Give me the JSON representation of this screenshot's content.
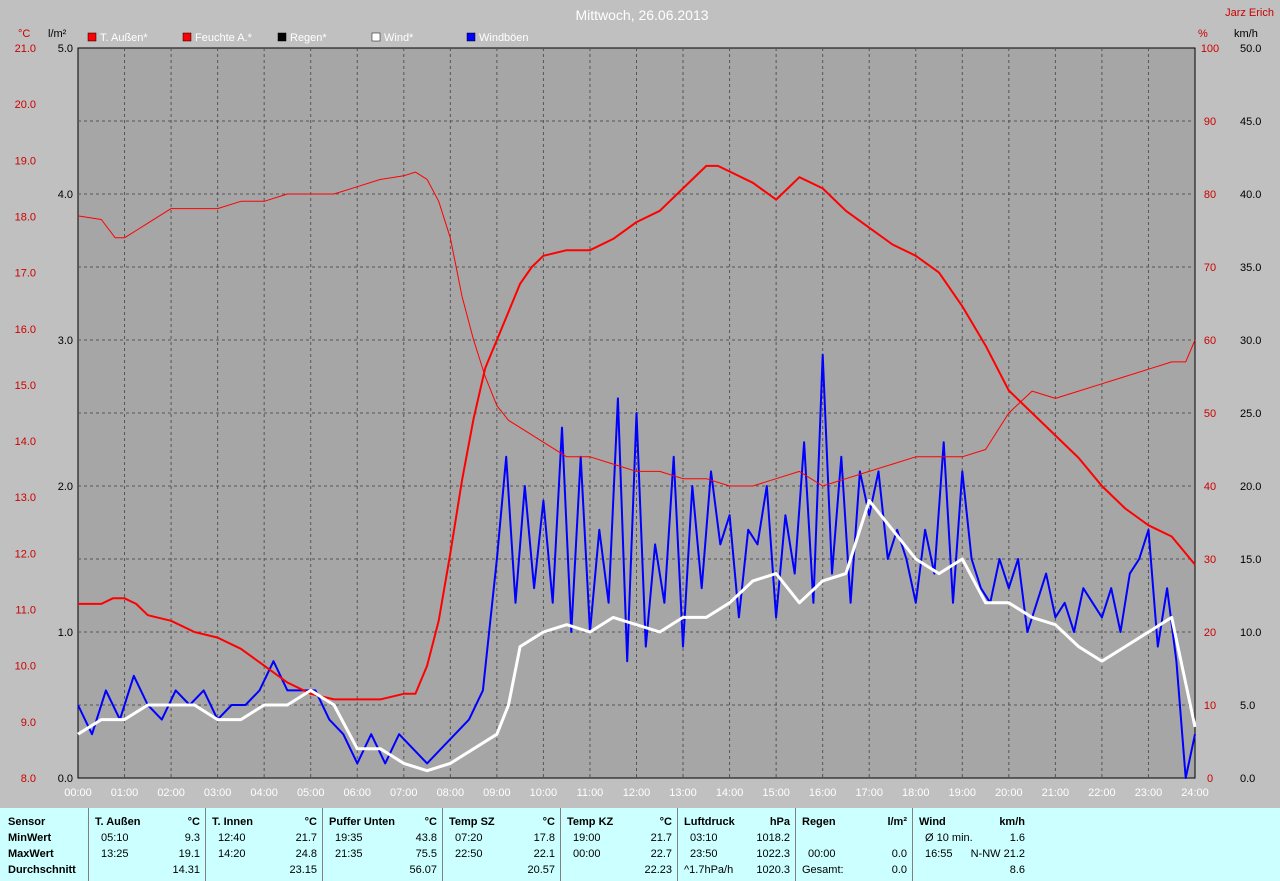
{
  "title": "Mittwoch, 26.06.2013",
  "author": "Jarz Erich",
  "units": {
    "temp": "°C",
    "rain": "l/m²",
    "hum": "%",
    "wind": "km/h"
  },
  "legend": [
    {
      "label": "T. Außen*",
      "color": "#ff0000"
    },
    {
      "label": "Feuchte A.*",
      "color": "#ff0000"
    },
    {
      "label": "Regen*",
      "color": "#000000"
    },
    {
      "label": "Wind*",
      "color": "#ffffff"
    },
    {
      "label": "Windböen",
      "color": "#0000ff"
    }
  ],
  "axes": {
    "temp_ticks": [
      "21.0",
      "20.0",
      "19.0",
      "18.0",
      "17.0",
      "16.0",
      "15.0",
      "14.0",
      "13.0",
      "12.0",
      "11.0",
      "10.0",
      "9.0",
      "8.0"
    ],
    "rain_ticks": [
      "5.0",
      "4.0",
      "3.0",
      "2.0",
      "1.0",
      "0.0"
    ],
    "hum_ticks": [
      "100",
      "90",
      "80",
      "70",
      "60",
      "50",
      "40",
      "30",
      "20",
      "10",
      "0"
    ],
    "wind_ticks": [
      "50.0",
      "45.0",
      "40.0",
      "35.0",
      "30.0",
      "25.0",
      "20.0",
      "15.0",
      "10.0",
      "5.0",
      "0.0"
    ],
    "time_ticks": [
      "00:00",
      "01:00",
      "02:00",
      "03:00",
      "04:00",
      "05:00",
      "06:00",
      "07:00",
      "08:00",
      "09:00",
      "10:00",
      "11:00",
      "12:00",
      "13:00",
      "14:00",
      "15:00",
      "16:00",
      "17:00",
      "18:00",
      "19:00",
      "20:00",
      "21:00",
      "22:00",
      "23:00",
      "24:00"
    ]
  },
  "chart_data": {
    "type": "line",
    "title": "Mittwoch, 26.06.2013",
    "x_unit": "hour",
    "xlim": [
      0,
      24
    ],
    "temp_ylim": [
      8,
      21
    ],
    "rain_ylim": [
      0,
      5
    ],
    "hum_ylim": [
      0,
      100
    ],
    "wind_ylim": [
      0,
      50
    ],
    "grid": true,
    "series": [
      {
        "name": "T. Außen*",
        "axis": "temp",
        "color": "#ff0000",
        "x": [
          0,
          0.5,
          0.75,
          1,
          1.25,
          1.5,
          2,
          2.5,
          3,
          3.5,
          4,
          4.5,
          5,
          5.5,
          6,
          6.5,
          7,
          7.25,
          7.5,
          7.75,
          8,
          8.25,
          8.5,
          8.75,
          9,
          9.25,
          9.5,
          9.75,
          10,
          10.5,
          11,
          11.5,
          12,
          12.5,
          13,
          13.5,
          13.75,
          14,
          14.5,
          15,
          15.25,
          15.5,
          16,
          16.25,
          16.5,
          17,
          17.5,
          18,
          18.5,
          19,
          19.5,
          20,
          20.5,
          21,
          21.5,
          22,
          22.5,
          23,
          23.5,
          24
        ],
        "values": [
          11.1,
          11.1,
          11.2,
          11.2,
          11.1,
          10.9,
          10.8,
          10.6,
          10.5,
          10.3,
          10.0,
          9.7,
          9.5,
          9.4,
          9.4,
          9.4,
          9.5,
          9.5,
          10.0,
          10.8,
          12.0,
          13.3,
          14.4,
          15.3,
          15.8,
          16.3,
          16.8,
          17.1,
          17.3,
          17.4,
          17.4,
          17.6,
          17.9,
          18.1,
          18.5,
          18.9,
          18.9,
          18.8,
          18.6,
          18.3,
          18.5,
          18.7,
          18.5,
          18.3,
          18.1,
          17.8,
          17.5,
          17.3,
          17.0,
          16.4,
          15.7,
          14.9,
          14.5,
          14.1,
          13.7,
          13.2,
          12.8,
          12.5,
          12.3,
          11.8
        ]
      },
      {
        "name": "Feuchte A.*",
        "axis": "hum",
        "color": "#ff0000",
        "x": [
          0,
          0.5,
          0.8,
          1,
          1.25,
          1.5,
          2,
          2.5,
          3,
          3.5,
          4,
          4.5,
          5,
          5.5,
          6,
          6.5,
          7,
          7.25,
          7.5,
          7.75,
          8,
          8.25,
          8.5,
          8.75,
          9,
          9.25,
          9.5,
          10,
          10.5,
          11,
          11.5,
          12,
          12.5,
          13,
          13.5,
          14,
          14.5,
          15,
          15.5,
          16,
          16.5,
          17,
          17.5,
          18,
          18.5,
          19,
          19.5,
          20,
          20.5,
          21,
          21.5,
          22,
          22.5,
          23,
          23.5,
          23.8,
          24
        ],
        "values": [
          77,
          76.5,
          74,
          74,
          75,
          76,
          78,
          78,
          78,
          79,
          79,
          80,
          80,
          80,
          81,
          82,
          82.5,
          83,
          82,
          79,
          74,
          66,
          60,
          55,
          51,
          49,
          48,
          46,
          44,
          44,
          43,
          42,
          42,
          41,
          41,
          40,
          40,
          41,
          42,
          40,
          41,
          42,
          43,
          44,
          44,
          44,
          45,
          50,
          53,
          52,
          53,
          54,
          55,
          56,
          57,
          57,
          60
        ]
      },
      {
        "name": "Regen*",
        "axis": "rain",
        "color": "#000000",
        "x": [
          0,
          24
        ],
        "values": [
          0,
          0
        ]
      },
      {
        "name": "Wind*",
        "axis": "wind",
        "color": "#ffffff",
        "x": [
          0,
          0.5,
          1,
          1.5,
          2,
          2.5,
          3,
          3.5,
          4,
          4.5,
          5,
          5.5,
          6,
          6.5,
          7,
          7.5,
          8,
          8.5,
          9,
          9.25,
          9.5,
          10,
          10.5,
          11,
          11.5,
          12,
          12.5,
          13,
          13.5,
          14,
          14.5,
          15,
          15.5,
          16,
          16.5,
          17,
          17.5,
          18,
          18.5,
          19,
          19.5,
          20,
          20.5,
          21,
          21.5,
          22,
          22.5,
          23,
          23.5,
          24
        ],
        "values": [
          3,
          4,
          4,
          5,
          5,
          5,
          4,
          4,
          5,
          5,
          6,
          5,
          2,
          2,
          1,
          0.5,
          1,
          2,
          3,
          5,
          9,
          10,
          10.5,
          10,
          11,
          10.5,
          10,
          11,
          11,
          12,
          13.5,
          14,
          12,
          13.5,
          14,
          19,
          17,
          15,
          14,
          15,
          12,
          12,
          11,
          10.5,
          9,
          8,
          9,
          10,
          11,
          3.5
        ]
      },
      {
        "name": "Windböen",
        "axis": "wind",
        "color": "#0000ff",
        "x": [
          0,
          0.3,
          0.6,
          0.9,
          1.2,
          1.5,
          1.8,
          2.1,
          2.4,
          2.7,
          3,
          3.3,
          3.6,
          3.9,
          4.2,
          4.5,
          4.8,
          5.1,
          5.4,
          5.7,
          6,
          6.3,
          6.6,
          6.9,
          7.2,
          7.5,
          7.8,
          8.1,
          8.4,
          8.7,
          9,
          9.2,
          9.4,
          9.6,
          9.8,
          10,
          10.2,
          10.4,
          10.6,
          10.8,
          11,
          11.2,
          11.4,
          11.6,
          11.8,
          12,
          12.2,
          12.4,
          12.6,
          12.8,
          13,
          13.2,
          13.4,
          13.6,
          13.8,
          14,
          14.2,
          14.4,
          14.6,
          14.8,
          15,
          15.2,
          15.4,
          15.6,
          15.8,
          16,
          16.2,
          16.4,
          16.6,
          16.8,
          17,
          17.2,
          17.4,
          17.6,
          17.8,
          18,
          18.2,
          18.4,
          18.6,
          18.8,
          19,
          19.2,
          19.4,
          19.6,
          19.8,
          20,
          20.2,
          20.4,
          20.6,
          20.8,
          21,
          21.2,
          21.4,
          21.6,
          21.8,
          22,
          22.2,
          22.4,
          22.6,
          22.8,
          23,
          23.2,
          23.4,
          23.6,
          23.8,
          24
        ],
        "values": [
          5,
          3,
          6,
          4,
          7,
          5,
          4,
          6,
          5,
          6,
          4,
          5,
          5,
          6,
          8,
          6,
          6,
          6,
          4,
          3,
          1,
          3,
          1,
          3,
          2,
          1,
          2,
          3,
          4,
          6,
          15,
          22,
          12,
          20,
          13,
          19,
          12,
          24,
          10,
          22,
          10,
          17,
          12,
          26,
          8,
          25,
          9,
          16,
          12,
          22,
          9,
          20,
          13,
          21,
          16,
          18,
          11,
          17,
          16,
          20,
          11,
          18,
          14,
          23,
          12,
          29,
          14,
          22,
          12,
          21,
          18,
          21,
          15,
          17,
          15,
          12,
          17,
          14,
          23,
          12,
          21,
          15,
          13,
          12,
          15,
          13,
          15,
          10,
          12,
          14,
          11,
          12,
          10,
          13,
          12,
          11,
          13,
          10,
          14,
          15,
          17,
          9,
          13,
          8,
          0,
          3
        ]
      }
    ]
  },
  "stats": {
    "row_labels": {
      "header": "Sensor",
      "min": "MinWert",
      "max": "MaxWert",
      "avg": "Durchschnitt"
    },
    "columns": [
      {
        "name": "T. Außen",
        "unit": "°C",
        "min_time": "05:10",
        "min_val": "9.3",
        "max_time": "13:25",
        "max_val": "19.1",
        "avg_time": "",
        "avg_val": "14.31"
      },
      {
        "name": "T. Innen",
        "unit": "°C",
        "min_time": "12:40",
        "min_val": "21.7",
        "max_time": "14:20",
        "max_val": "24.8",
        "avg_time": "",
        "avg_val": "23.15"
      },
      {
        "name": "Puffer Unten",
        "unit": "°C",
        "min_time": "19:35",
        "min_val": "43.8",
        "max_time": "21:35",
        "max_val": "75.5",
        "avg_time": "",
        "avg_val": "56.07"
      },
      {
        "name": "Temp SZ",
        "unit": "°C",
        "min_time": "07:20",
        "min_val": "17.8",
        "max_time": "22:50",
        "max_val": "22.1",
        "avg_time": "",
        "avg_val": "20.57"
      },
      {
        "name": "Temp KZ",
        "unit": "°C",
        "min_time": "19:00",
        "min_val": "21.7",
        "max_time": "00:00",
        "max_val": "22.7",
        "avg_time": "",
        "avg_val": "22.23"
      },
      {
        "name": "Luftdruck",
        "unit": "hPa",
        "min_time": "03:10",
        "min_val": "1018.2",
        "max_time": "23:50",
        "max_val": "1022.3",
        "avg_time": "^1.7hPa/h",
        "avg_val": "1020.3"
      },
      {
        "name": "Regen",
        "unit": "l/m²",
        "min_time": "",
        "min_val": "",
        "max_time": "00:00",
        "max_val": "0.0",
        "avg_time": "Gesamt:",
        "avg_val": "0.0"
      },
      {
        "name": "Wind",
        "unit": "km/h",
        "min_time": "Ø 10 min.",
        "min_val": "1.6",
        "max_time": "16:55",
        "max_val": "N-NW 21.2",
        "avg_time": "",
        "avg_val": "8.6"
      }
    ]
  }
}
